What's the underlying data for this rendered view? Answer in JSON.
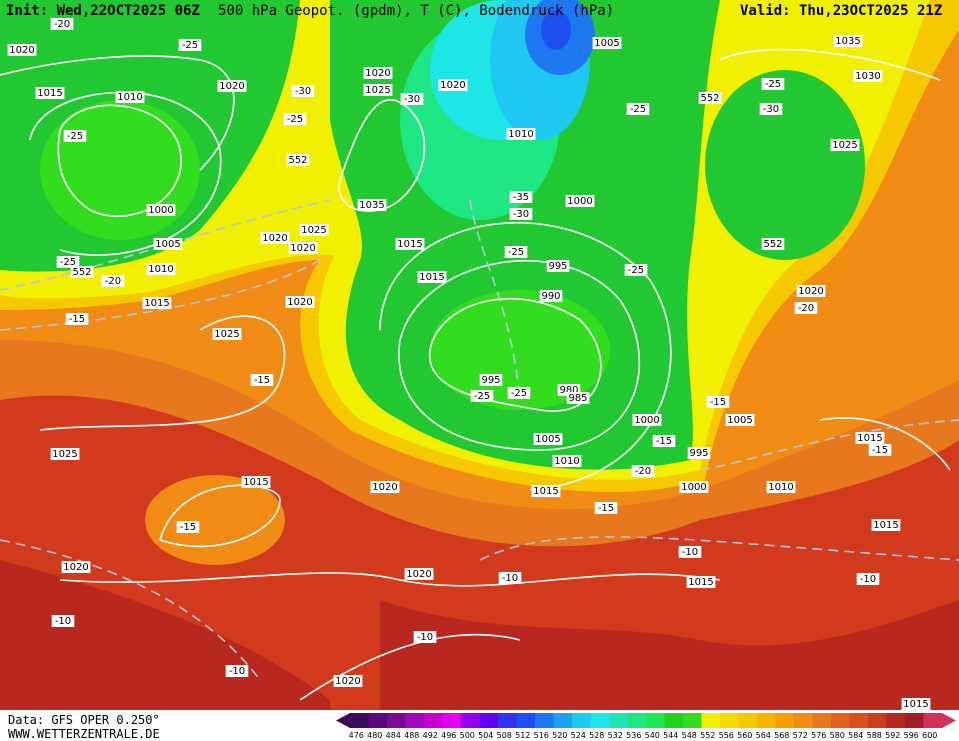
{
  "header": {
    "init": "Init: Wed,22OCT2025 06Z",
    "title": "500 hPa Geopot. (gpdm), T (C), Bodendruck (hPa)",
    "valid": "Valid: Thu,23OCT2025 21Z"
  },
  "footer": {
    "source": "Data: GFS OPER 0.250°",
    "site": "WWW.WETTERZENTRALE.DE"
  },
  "colorbar": {
    "ticks": [
      476,
      480,
      484,
      488,
      492,
      496,
      500,
      504,
      508,
      512,
      516,
      520,
      524,
      528,
      532,
      536,
      540,
      544,
      548,
      552,
      556,
      560,
      564,
      568,
      572,
      576,
      580,
      584,
      588,
      592,
      596,
      600
    ],
    "colors": [
      "#3c0a5a",
      "#5a0a78",
      "#780a96",
      "#a00ab4",
      "#c800d2",
      "#e600f0",
      "#9600f0",
      "#6400f0",
      "#3232f0",
      "#1e50f0",
      "#1e78f0",
      "#1ea0f0",
      "#1ec8f0",
      "#1ee6e6",
      "#1ee6b4",
      "#1ee682",
      "#1ee650",
      "#1ed21e",
      "#32dc1e",
      "#f0f000",
      "#f5dc00",
      "#f5c800",
      "#f5b400",
      "#f5a000",
      "#f08c14",
      "#e8781e",
      "#e0641e",
      "#d8501e",
      "#cc3c1e",
      "#b4281e",
      "#a01e28",
      "#d2325a"
    ]
  },
  "map_labels": [
    "1020",
    "-20",
    "1015",
    "1010",
    "-25",
    "-25",
    "1020",
    "-30",
    "-25",
    "1020",
    "1025",
    "-30",
    "1020",
    "1005",
    "552",
    "-25",
    "1010",
    "-25",
    "-30",
    "1035",
    "1030",
    "1025",
    "552",
    "1000",
    "1005",
    "1035",
    "-35",
    "-30",
    "1000",
    "1025",
    "1020",
    "1020",
    "1015",
    "-25",
    "552",
    "-25",
    "552",
    "-20",
    "1010",
    "1015",
    "995",
    "-25",
    "1015",
    "1020",
    "990",
    "1020",
    "-20",
    "-15",
    "1025",
    "-15",
    "995",
    "-25",
    "-25",
    "980",
    "985",
    "-15",
    "1005",
    "1000",
    "1005",
    "-15",
    "1015",
    "-15",
    "1025",
    "995",
    "1010",
    "-20",
    "1015",
    "1020",
    "1000",
    "1010",
    "1015",
    "-15",
    "-15",
    "1015",
    "-10",
    "1020",
    "1020",
    "-10",
    "1015",
    "-10",
    "-10",
    "-10",
    "-10",
    "1020",
    "1015"
  ]
}
